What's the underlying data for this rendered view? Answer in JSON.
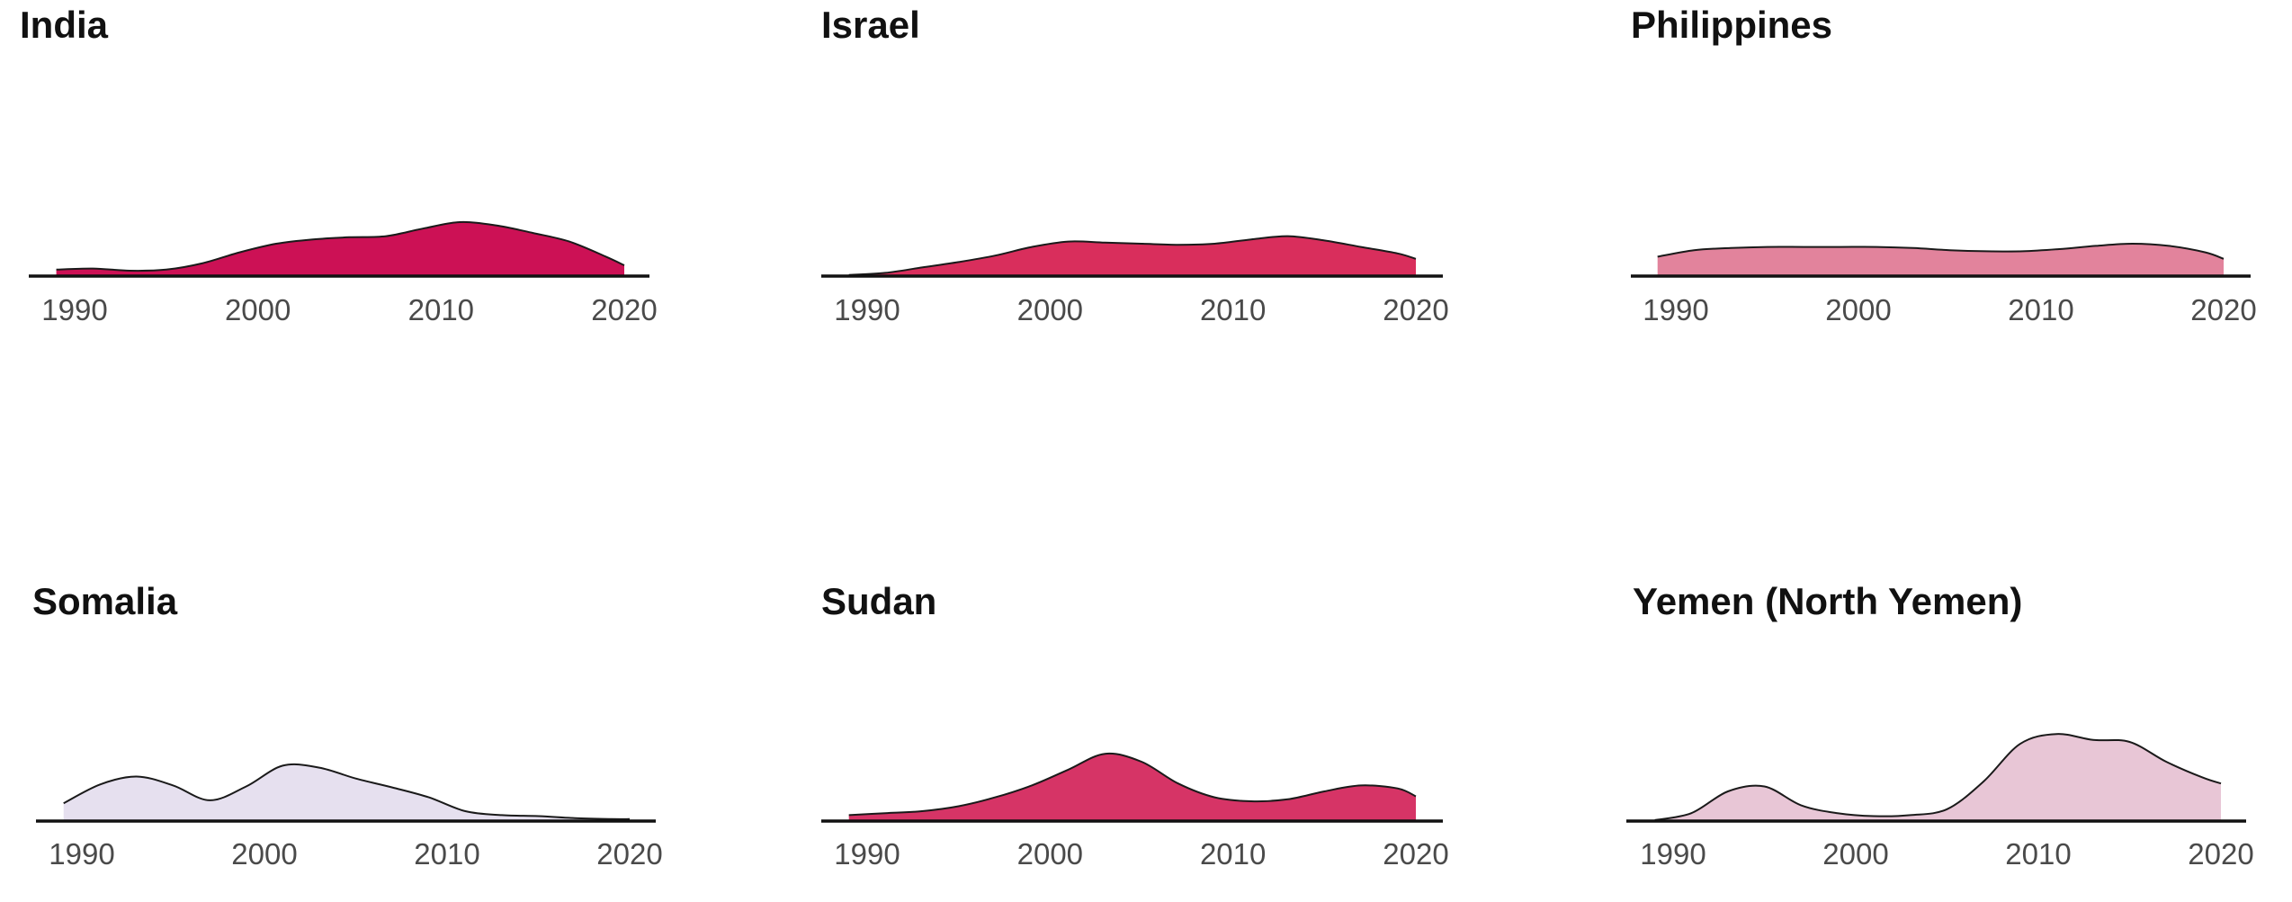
{
  "chart_data": [
    {
      "type": "area",
      "title": "India",
      "fill": "#cc1155",
      "xlim": [
        1989,
        2020
      ],
      "xticks": [
        "1990",
        "2000",
        "2010",
        "2020"
      ],
      "x": [
        1989,
        1991,
        1993,
        1995,
        1997,
        1999,
        2001,
        2003,
        2005,
        2007,
        2009,
        2011,
        2013,
        2015,
        2017,
        2019,
        2020
      ],
      "values": [
        0.06,
        0.07,
        0.05,
        0.06,
        0.12,
        0.22,
        0.3,
        0.34,
        0.36,
        0.37,
        0.44,
        0.5,
        0.47,
        0.4,
        0.32,
        0.18,
        0.1
      ]
    },
    {
      "type": "area",
      "title": "Israel",
      "fill": "#d92e5c",
      "xlim": [
        1989,
        2020
      ],
      "xticks": [
        "1990",
        "2000",
        "2010",
        "2020"
      ],
      "x": [
        1989,
        1991,
        1993,
        1995,
        1997,
        1999,
        2001,
        2003,
        2005,
        2007,
        2009,
        2011,
        2013,
        2015,
        2017,
        2019,
        2020
      ],
      "values": [
        0.01,
        0.03,
        0.08,
        0.13,
        0.19,
        0.27,
        0.32,
        0.31,
        0.3,
        0.29,
        0.3,
        0.34,
        0.37,
        0.33,
        0.27,
        0.21,
        0.16
      ]
    },
    {
      "type": "area",
      "title": "Philippines",
      "fill": "#e2839c",
      "xlim": [
        1989,
        2020
      ],
      "xticks": [
        "1990",
        "2000",
        "2010",
        "2020"
      ],
      "x": [
        1989,
        1991,
        1993,
        1995,
        1997,
        1999,
        2001,
        2003,
        2005,
        2007,
        2009,
        2011,
        2013,
        2015,
        2017,
        2019,
        2020
      ],
      "values": [
        0.18,
        0.24,
        0.26,
        0.27,
        0.27,
        0.27,
        0.27,
        0.26,
        0.24,
        0.23,
        0.23,
        0.25,
        0.28,
        0.3,
        0.28,
        0.22,
        0.16
      ]
    },
    {
      "type": "area",
      "title": "Somalia",
      "fill": "#e6e0ef",
      "xlim": [
        1989,
        2020
      ],
      "xticks": [
        "1990",
        "2000",
        "2010",
        "2020"
      ],
      "x": [
        1989,
        1991,
        1993,
        1995,
        1997,
        1999,
        2001,
        2003,
        2005,
        2007,
        2009,
        2011,
        2013,
        2015,
        2017,
        2019,
        2020
      ],
      "values": [
        0.18,
        0.37,
        0.45,
        0.36,
        0.21,
        0.35,
        0.56,
        0.54,
        0.43,
        0.34,
        0.24,
        0.1,
        0.06,
        0.05,
        0.03,
        0.02,
        0.02
      ]
    },
    {
      "type": "area",
      "title": "Sudan",
      "fill": "#d63466",
      "xlim": [
        1989,
        2020
      ],
      "xticks": [
        "1990",
        "2000",
        "2010",
        "2020"
      ],
      "x": [
        1989,
        1991,
        1993,
        1995,
        1997,
        1999,
        2001,
        2003,
        2005,
        2007,
        2009,
        2011,
        2013,
        2015,
        2017,
        2019,
        2020
      ],
      "values": [
        0.06,
        0.08,
        0.1,
        0.15,
        0.24,
        0.36,
        0.52,
        0.68,
        0.6,
        0.38,
        0.24,
        0.2,
        0.22,
        0.3,
        0.36,
        0.33,
        0.25
      ]
    },
    {
      "type": "area",
      "title": "Yemen (North Yemen)",
      "fill": "#e8c6d6",
      "xlim": [
        1989,
        2020
      ],
      "xticks": [
        "1990",
        "2000",
        "2010",
        "2020"
      ],
      "x": [
        1989,
        1991,
        1993,
        1995,
        1997,
        1999,
        2001,
        2003,
        2005,
        2007,
        2009,
        2011,
        2013,
        2015,
        2017,
        2019,
        2020
      ],
      "values": [
        0.01,
        0.08,
        0.3,
        0.35,
        0.16,
        0.08,
        0.05,
        0.06,
        0.12,
        0.4,
        0.78,
        0.88,
        0.82,
        0.8,
        0.6,
        0.44,
        0.38
      ]
    }
  ]
}
